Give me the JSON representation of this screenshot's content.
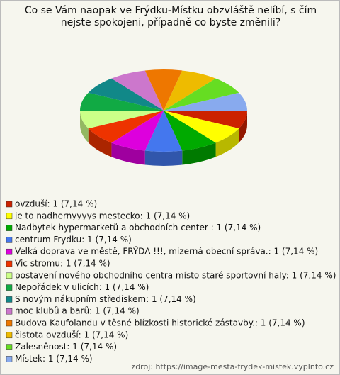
{
  "chart_data": {
    "type": "pie",
    "title": "Co se Vám naopak ve Frýdku-Místku obzvláště nelíbí, s čím nejste spokojeni, případně co byste změnili?",
    "categories": [
      "ovzduší: 1 (7,14 %)",
      "je  to nadhernyyyys mestecko: 1 (7,14 %)",
      "Nadbytek hypermarketů a obchodních center : 1 (7,14 %)",
      "centrum Frydku: 1 (7,14 %)",
      "Velká doprava ve městě, FRÝDA !!!, mizerná obecní správa.: 1 (7,14 %)",
      "Vic stromu: 1 (7,14 %)",
      "postavení nového obchodního centra místo staré sportovní haly: 1 (7,14 %)",
      "Nepořádek v ulicích: 1 (7,14 %)",
      "S novým nákupním střediskem: 1 (7,14 %)",
      "moc klubů a barů: 1 (7,14 %)",
      "Budova Kaufolandu v těsné blízkosti historické zástavby.: 1 (7,14 %)",
      "čistota ovzduší: 1 (7,14 %)",
      "Zalesněnost: 1 (7,14 %)",
      "Místek: 1 (7,14 %)"
    ],
    "values": [
      1,
      1,
      1,
      1,
      1,
      1,
      1,
      1,
      1,
      1,
      1,
      1,
      1,
      1
    ],
    "colors": [
      "#cc2200",
      "#ffff00",
      "#00aa00",
      "#4477ee",
      "#dd00dd",
      "#ee3300",
      "#ccff88",
      "#11aa44",
      "#118888",
      "#cc77cc",
      "#ee7700",
      "#eebb00",
      "#66dd22",
      "#88aaee"
    ],
    "source": "zdroj: https://image-mesta-frydek-mistek.vyplnto.cz"
  }
}
